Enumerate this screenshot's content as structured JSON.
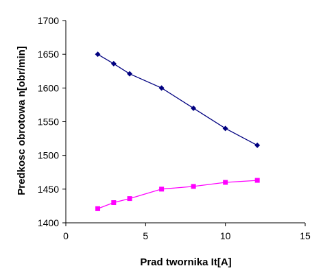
{
  "chart_data": {
    "type": "line",
    "title": "",
    "xlabel": "Prad twornika It[A]",
    "ylabel": "Predkosc obrotowa n[obr/min]",
    "xlim": [
      0,
      15
    ],
    "ylim": [
      1400,
      1700
    ],
    "xticks": [
      "0",
      "5",
      "10",
      "15"
    ],
    "yticks": [
      "1400",
      "1450",
      "1500",
      "1550",
      "1600",
      "1650",
      "1700"
    ],
    "grid": false,
    "legend": "none",
    "series": [
      {
        "color": "#000080",
        "marker": "diamond",
        "x": [
          2,
          3,
          4,
          6,
          8,
          10,
          12
        ],
        "y": [
          1650,
          1636,
          1621,
          1600,
          1570,
          1540,
          1515
        ]
      },
      {
        "color": "#ff00ff",
        "marker": "square",
        "x": [
          2,
          3,
          4,
          6,
          8,
          10,
          12
        ],
        "y": [
          1421,
          1430,
          1436,
          1450,
          1454,
          1460,
          1463
        ]
      }
    ]
  }
}
